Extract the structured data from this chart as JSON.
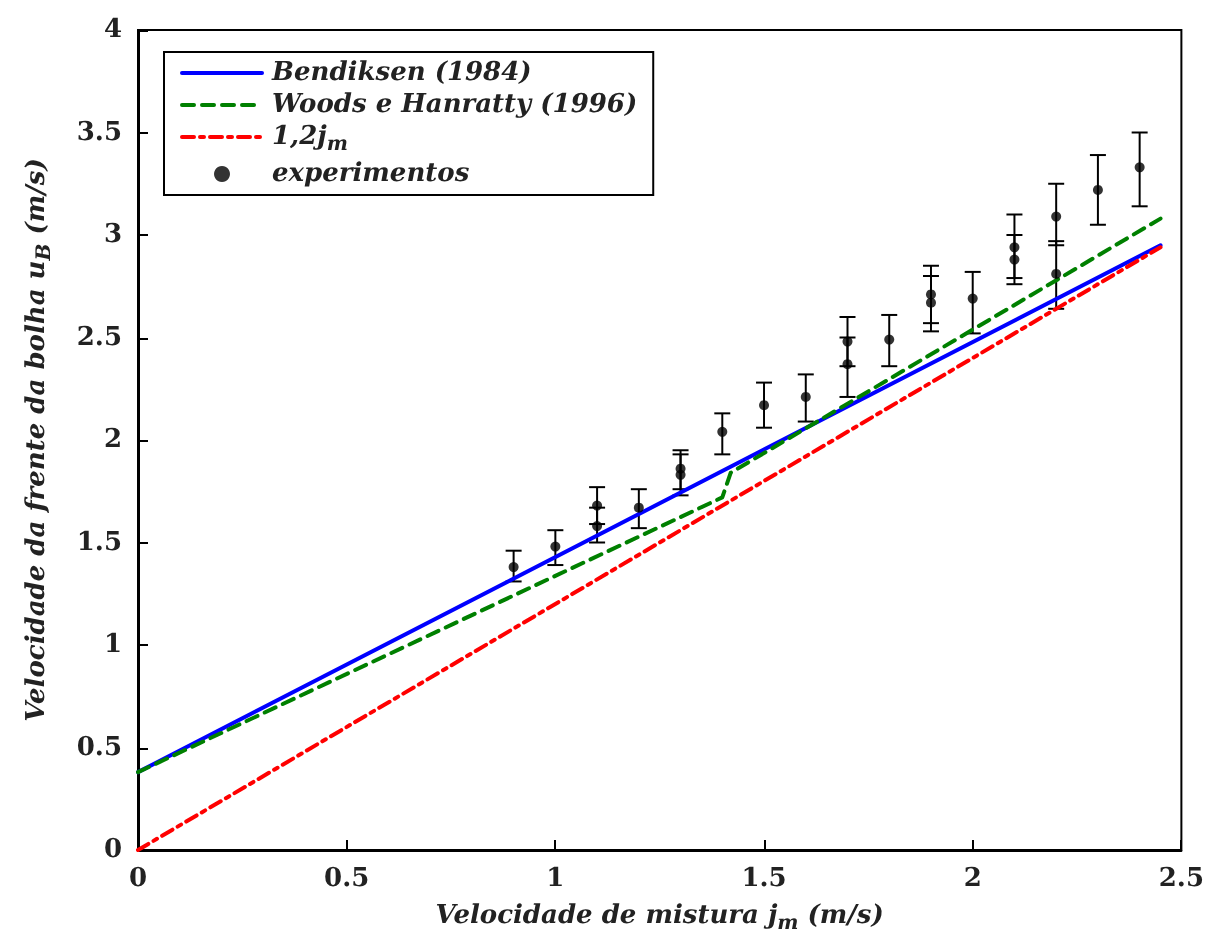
{
  "chart_data": {
    "type": "line",
    "xlabel": "Velocidade de mistura j$_{m}$ (m/s)",
    "ylabel": "Velocidade da frente da bolha u$_{B}$ (m/s)",
    "xlim": [
      0,
      2.5
    ],
    "xticks": [
      0,
      0.5,
      1,
      1.5,
      2,
      2.5
    ],
    "ylim": [
      0,
      4
    ],
    "yticks": [
      0,
      0.5,
      1,
      1.5,
      2,
      2.5,
      3,
      3.5,
      4
    ],
    "grid": false,
    "legend": "top left",
    "series": [
      {
        "name": "Bendiksen (1984)",
        "color": "#0000ff",
        "line_style": "solid",
        "marker": "none",
        "x": [
          0,
          2.45
        ],
        "values": [
          0.38,
          2.95
        ]
      },
      {
        "name": "Woods e Hanratty (1996)",
        "color": "#008000",
        "line_style": "dashed",
        "marker": "none",
        "x": [
          0,
          1.4,
          1.42,
          2.45
        ],
        "values": [
          0.38,
          1.72,
          1.84,
          3.08
        ]
      },
      {
        "name": "1,2j$_{m}$",
        "color": "#ff0000",
        "line_style": "dashdot",
        "marker": "none",
        "x": [
          0,
          2.45
        ],
        "values": [
          0,
          2.94
        ]
      },
      {
        "name": "experimentos",
        "type": "scatter",
        "color": "#000000",
        "marker": "circle",
        "x": [
          0.9,
          1.0,
          1.1,
          1.1,
          1.2,
          1.3,
          1.3,
          1.4,
          1.5,
          1.6,
          1.7,
          1.7,
          1.8,
          1.9,
          1.9,
          2.0,
          2.1,
          2.1,
          2.2,
          2.2,
          2.3,
          2.4
        ],
        "values": [
          1.38,
          1.48,
          1.68,
          1.58,
          1.67,
          1.86,
          1.83,
          2.04,
          2.17,
          2.21,
          2.48,
          2.37,
          2.49,
          2.71,
          2.67,
          2.69,
          2.94,
          2.88,
          3.09,
          2.81,
          3.22,
          3.33
        ],
        "errors": [
          [
            1.31,
            1.46
          ],
          [
            1.39,
            1.56
          ],
          [
            1.59,
            1.77
          ],
          [
            1.5,
            1.67
          ],
          [
            1.57,
            1.76
          ],
          [
            1.76,
            1.95
          ],
          [
            1.73,
            1.93
          ],
          [
            1.93,
            2.13
          ],
          [
            2.06,
            2.28
          ],
          [
            2.09,
            2.32
          ],
          [
            2.36,
            2.6
          ],
          [
            2.21,
            2.5
          ],
          [
            2.36,
            2.61
          ],
          [
            2.57,
            2.85
          ],
          [
            2.53,
            2.8
          ],
          [
            2.52,
            2.82
          ],
          [
            2.79,
            3.1
          ],
          [
            2.76,
            3.0
          ],
          [
            2.95,
            3.25
          ],
          [
            2.64,
            2.97
          ],
          [
            3.05,
            3.39
          ],
          [
            3.14,
            3.5
          ]
        ]
      }
    ]
  }
}
